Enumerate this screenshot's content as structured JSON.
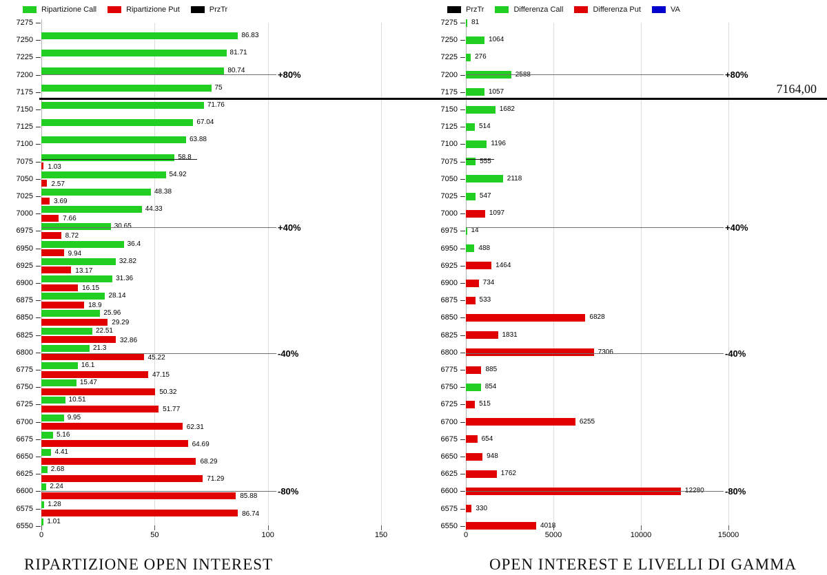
{
  "colors": {
    "call_green": "#22CE22",
    "put_red": "#E00000",
    "prztr_black": "#000000",
    "va_blue": "#0000CC",
    "grid": "#DCDCDC",
    "ref_line": "#6E6E6E"
  },
  "price_line": {
    "label": "7164,00"
  },
  "chart_data": [
    {
      "type": "bar",
      "orientation": "horizontal",
      "title": "RIPARTIZIONE OPEN INTEREST",
      "legend": [
        {
          "label": "Ripartizione Call",
          "color_key": "call_green"
        },
        {
          "label": "Ripartizione Put",
          "color_key": "put_red"
        },
        {
          "label": "PrzTr",
          "color_key": "prztr_black"
        }
      ],
      "categories": [
        "7275",
        "7250",
        "7225",
        "7200",
        "7175",
        "7150",
        "7125",
        "7100",
        "7075",
        "7050",
        "7025",
        "7000",
        "6975",
        "6950",
        "6925",
        "6900",
        "6875",
        "6850",
        "6825",
        "6800",
        "6775",
        "6750",
        "6725",
        "6700",
        "6675",
        "6650",
        "6625",
        "6600",
        "6575",
        "6550"
      ],
      "series": [
        {
          "name": "Ripartizione Call",
          "color_key": "call_green",
          "values": [
            null,
            "86.83",
            "81.71",
            "80.74",
            "75",
            "71.76",
            "67.04",
            "63.88",
            "58.8",
            "54.92",
            "48.38",
            "44.33",
            "30.65",
            "36.4",
            "32.82",
            "31.36",
            "28.14",
            "25.96",
            "22.51",
            "21.3",
            "16.1",
            "15.47",
            "10.51",
            "9.95",
            "5.16",
            "4.41",
            "2.68",
            "2.24",
            "1.28",
            "1.01"
          ]
        },
        {
          "name": "Ripartizione Put",
          "color_key": "put_red",
          "values": [
            null,
            null,
            null,
            null,
            null,
            null,
            null,
            null,
            "1.03",
            "2.57",
            "3.69",
            "7.66",
            "8.72",
            "9.94",
            "13.17",
            "16.15",
            "18.9",
            "29.29",
            "32.86",
            "45.22",
            "47.15",
            "50.32",
            "51.77",
            "62.31",
            "64.69",
            "68.29",
            "71.29",
            "85.88",
            "86.74",
            null
          ]
        }
      ],
      "xticks": [
        "0",
        "50",
        "100",
        "150"
      ],
      "xlim": [
        0,
        150
      ],
      "grid": true,
      "ref_lines": [
        {
          "label": "+80%",
          "strike": "7200"
        },
        {
          "label": "+40%",
          "strike": "6975"
        },
        {
          "label": "-40%",
          "strike": "6800"
        },
        {
          "label": "-80%",
          "strike": "6600"
        }
      ],
      "marker_line": {
        "strike": "7075"
      }
    },
    {
      "type": "bar",
      "orientation": "horizontal",
      "title": "OPEN INTEREST E LIVELLI DI GAMMA",
      "legend": [
        {
          "label": "PrzTr",
          "color_key": "prztr_black"
        },
        {
          "label": "Differenza Call",
          "color_key": "call_green"
        },
        {
          "label": "Differenza Put",
          "color_key": "put_red"
        },
        {
          "label": "VA",
          "color_key": "va_blue"
        }
      ],
      "categories": [
        "7275",
        "7250",
        "7225",
        "7200",
        "7175",
        "7150",
        "7125",
        "7100",
        "7075",
        "7050",
        "7025",
        "7000",
        "6975",
        "6950",
        "6925",
        "6900",
        "6875",
        "6850",
        "6825",
        "6800",
        "6775",
        "6750",
        "6725",
        "6700",
        "6675",
        "6650",
        "6625",
        "6600",
        "6575",
        "6550"
      ],
      "values": [
        "81",
        "1064",
        "276",
        "2588",
        "1057",
        "1682",
        "514",
        "1196",
        "555",
        "2118",
        "547",
        "1097",
        "14",
        "488",
        "1464",
        "734",
        "533",
        "6828",
        "1831",
        "7306",
        "885",
        "854",
        "515",
        "6255",
        "654",
        "948",
        "1762",
        "12280",
        "330",
        "4018"
      ],
      "value_colors": [
        "call_green",
        "call_green",
        "call_green",
        "call_green",
        "call_green",
        "call_green",
        "call_green",
        "call_green",
        "call_green",
        "call_green",
        "call_green",
        "put_red",
        "call_green",
        "call_green",
        "put_red",
        "put_red",
        "put_red",
        "put_red",
        "put_red",
        "put_red",
        "put_red",
        "call_green",
        "put_red",
        "put_red",
        "put_red",
        "put_red",
        "put_red",
        "put_red",
        "put_red",
        "put_red"
      ],
      "xticks": [
        "0",
        "5000",
        "10000",
        "15000"
      ],
      "xlim": [
        0,
        15000
      ],
      "grid": true,
      "ref_lines": [
        {
          "label": "+80%",
          "strike": "7200"
        },
        {
          "label": "+40%",
          "strike": "6975"
        },
        {
          "label": "-40%",
          "strike": "6800"
        },
        {
          "label": "-80%",
          "strike": "6600"
        }
      ],
      "marker_line": {
        "strike": "7075"
      }
    }
  ]
}
